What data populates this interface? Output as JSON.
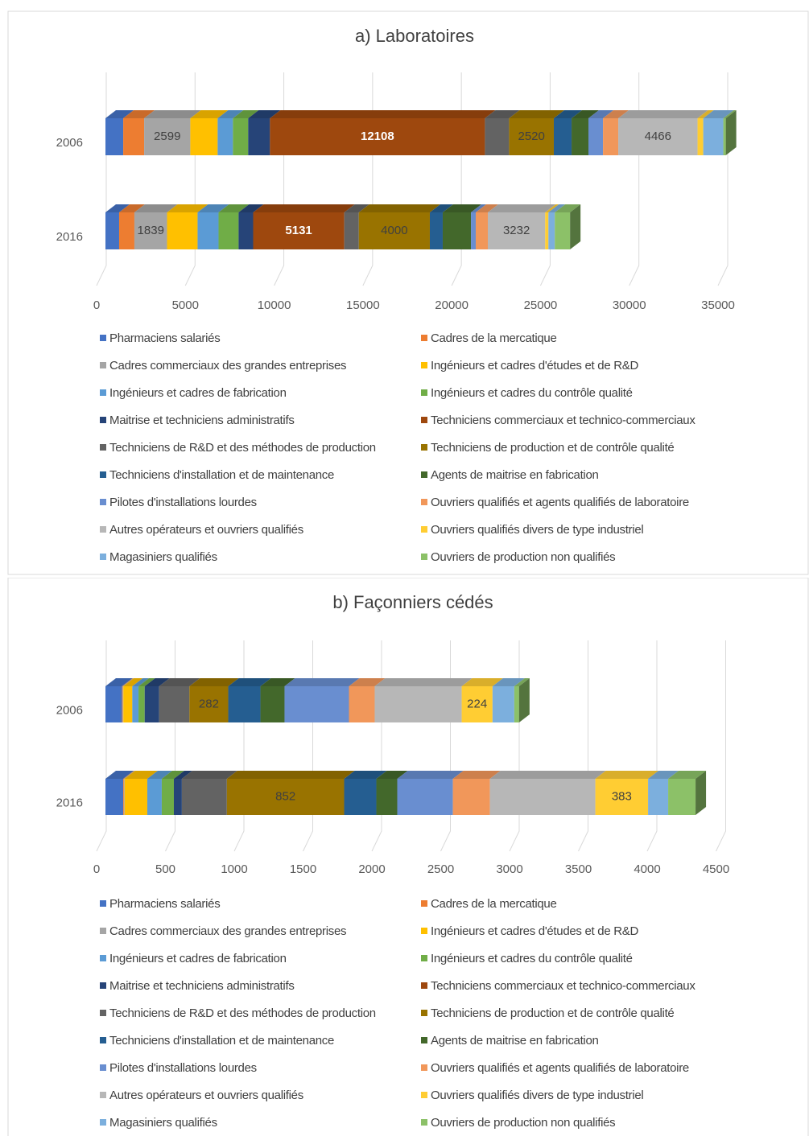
{
  "chart_data": [
    {
      "type": "stacked-bar-3d",
      "title": "a) Laboratoires",
      "categories": [
        "2006",
        "2016"
      ],
      "xlim": [
        0,
        35000
      ],
      "xticks": [
        0,
        5000,
        10000,
        15000,
        20000,
        25000,
        30000,
        35000
      ],
      "grid": true,
      "legend": "bottom",
      "series": [
        {
          "name": "Pharmaciens salariés",
          "color": "#4472c4",
          "values": [
            1000,
            770
          ]
        },
        {
          "name": "Cadres de la mercatique",
          "color": "#ed7d31",
          "values": [
            1180,
            860
          ]
        },
        {
          "name": "Cadres commerciaux des grandes entreprises",
          "color": "#a5a5a5",
          "values": [
            2599,
            1839
          ],
          "value_labels": [
            "2599",
            "1839"
          ]
        },
        {
          "name": "Ingénieurs et cadres d'études et de R&D",
          "color": "#ffc000",
          "values": [
            1540,
            1720
          ]
        },
        {
          "name": "Ingénieurs et cadres de fabrication",
          "color": "#5b9bd5",
          "values": [
            860,
            1180
          ]
        },
        {
          "name": "Ingénieurs et cadres du contrôle qualité",
          "color": "#70ad47",
          "values": [
            860,
            1130
          ]
        },
        {
          "name": "Maitrise et techniciens administratifs",
          "color": "#264478",
          "values": [
            1225,
            820
          ]
        },
        {
          "name": "Techniciens commerciaux et technico-commerciaux",
          "color": "#9e480e",
          "values": [
            12108,
            5131
          ],
          "value_labels": [
            "12108",
            "5131"
          ]
        },
        {
          "name": "Techniciens de R&D et des méthodes de production",
          "color": "#636363",
          "values": [
            1360,
            820
          ]
        },
        {
          "name": "Techniciens de production et de contrôle qualité",
          "color": "#997300",
          "values": [
            2520,
            4000
          ],
          "value_labels": [
            "2520",
            "4000"
          ]
        },
        {
          "name": "Techniciens d'installation et de maintenance",
          "color": "#255e91",
          "values": [
            1000,
            725
          ]
        },
        {
          "name": "Agents de maitrise en fabrication",
          "color": "#43682b",
          "values": [
            950,
            1590
          ]
        },
        {
          "name": "Pilotes d'installations lourdes",
          "color": "#698ed0",
          "values": [
            820,
            270
          ]
        },
        {
          "name": "Ouvriers qualifiés et agents qualifiés de laboratoire",
          "color": "#f1975a",
          "values": [
            860,
            680
          ]
        },
        {
          "name": "Autres opérateurs et ouvriers qualifiés",
          "color": "#b7b7b7",
          "values": [
            4466,
            3232
          ],
          "value_labels": [
            "4466",
            "3232"
          ]
        },
        {
          "name": "Ouvriers qualifiés divers de type industriel",
          "color": "#ffcd33",
          "values": [
            320,
            180
          ]
        },
        {
          "name": "Magasiniers qualifiés",
          "color": "#7cafdd",
          "values": [
            1130,
            360
          ]
        },
        {
          "name": "Ouvriers de production non qualifiés",
          "color": "#8cc168",
          "values": [
            140,
            860
          ]
        }
      ]
    },
    {
      "type": "stacked-bar-3d",
      "title": "b) Façonniers cédés",
      "categories": [
        "2006",
        "2016"
      ],
      "xlim": [
        0,
        4500
      ],
      "xticks": [
        0,
        500,
        1000,
        1500,
        2000,
        2500,
        3000,
        3500,
        4000,
        4500
      ],
      "grid": true,
      "legend": "bottom",
      "series": [
        {
          "name": "Pharmaciens salariés",
          "color": "#4472c4",
          "values": [
            120,
            129
          ]
        },
        {
          "name": "Cadres de la mercatique",
          "color": "#ed7d31",
          "values": [
            5,
            5
          ]
        },
        {
          "name": "Cadres commerciaux des grandes entreprises",
          "color": "#a5a5a5",
          "values": [
            5,
            5
          ]
        },
        {
          "name": "Ingénieurs et cadres d'études et de R&D",
          "color": "#ffc000",
          "values": [
            65,
            165
          ]
        },
        {
          "name": "Ingénieurs et cadres de fabrication",
          "color": "#5b9bd5",
          "values": [
            45,
            105
          ]
        },
        {
          "name": "Ingénieurs et cadres du contrôle qualité",
          "color": "#70ad47",
          "values": [
            45,
            88
          ]
        },
        {
          "name": "Maitrise et techniciens administratifs",
          "color": "#264478",
          "values": [
            105,
            58
          ]
        },
        {
          "name": "Techniciens commerciaux et technico-commerciaux",
          "color": "#9e480e",
          "values": [
            0,
            0
          ]
        },
        {
          "name": "Techniciens de R&D et des méthodes de production",
          "color": "#636363",
          "values": [
            220,
            327
          ]
        },
        {
          "name": "Techniciens de production et de contrôle qualité",
          "color": "#997300",
          "values": [
            282,
            852
          ],
          "value_labels": [
            "282",
            "852"
          ]
        },
        {
          "name": "Techniciens d'installation et de maintenance",
          "color": "#255e91",
          "values": [
            234,
            234
          ]
        },
        {
          "name": "Agents de maitrise en fabrication",
          "color": "#43682b",
          "values": [
            175,
            152
          ]
        },
        {
          "name": "Pilotes d'installations lourdes",
          "color": "#698ed0",
          "values": [
            468,
            404
          ]
        },
        {
          "name": "Ouvriers qualifiés et agents qualifiés de laboratoire",
          "color": "#f1975a",
          "values": [
            187,
            269
          ]
        },
        {
          "name": "Autres opérateurs et ouvriers qualifiés",
          "color": "#b7b7b7",
          "values": [
            632,
            766
          ]
        },
        {
          "name": "Ouvriers qualifiés divers de type industriel",
          "color": "#ffcd33",
          "values": [
            224,
            383
          ],
          "value_labels": [
            "224",
            "383"
          ]
        },
        {
          "name": "Magasiniers qualifiés",
          "color": "#7cafdd",
          "values": [
            158,
            146
          ]
        },
        {
          "name": "Ouvriers de production non qualifiés",
          "color": "#8cc168",
          "values": [
            35,
            199
          ]
        }
      ]
    }
  ]
}
